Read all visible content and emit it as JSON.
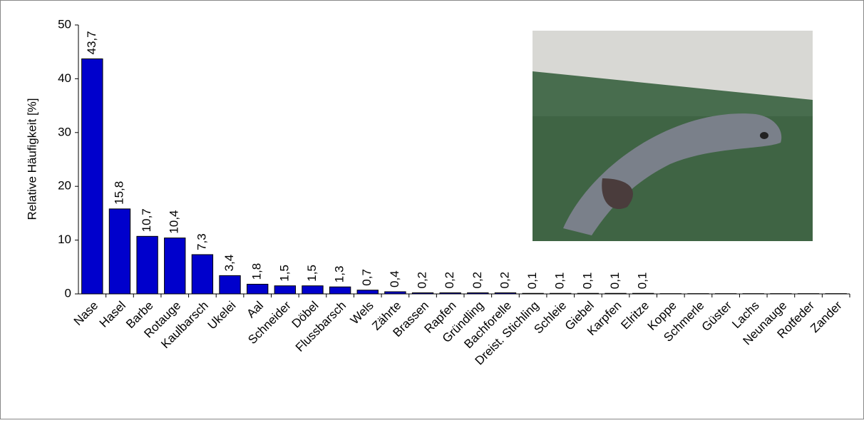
{
  "chart_data": {
    "type": "bar",
    "y_label": "Relative Häufigkeit [%]",
    "categories": [
      "Nase",
      "Hasel",
      "Barbe",
      "Rotauge",
      "Kaulbarsch",
      "Ukelei",
      "Aal",
      "Schneider",
      "Döbel",
      "Flussbarsch",
      "Wels",
      "Zährte",
      "Brassen",
      "Rapfen",
      "Gründling",
      "Bachforelle",
      "Dreist. Stichling",
      "Schleie",
      "Giebel",
      "Karpfen",
      "Elritze",
      "Koppe",
      "Schmerle",
      "Güster",
      "Lachs",
      "Neunauge",
      "Rotfeder",
      "Zander"
    ],
    "values": [
      43.7,
      15.8,
      10.7,
      10.4,
      7.3,
      3.4,
      1.8,
      1.5,
      1.5,
      1.3,
      0.7,
      0.4,
      0.2,
      0.2,
      0.2,
      0.2,
      0.1,
      0.1,
      0.1,
      0.1,
      0.1,
      0.05,
      0.05,
      0.05,
      0.05,
      0.05,
      0.05,
      0.05
    ],
    "value_labels": [
      "43,7",
      "15,8",
      "10,7",
      "10,4",
      "7,3",
      "3,4",
      "1,8",
      "1,5",
      "1,5",
      "1,3",
      "0,7",
      "0,4",
      "0,2",
      "0,2",
      "0,2",
      "0,2",
      "0,1",
      "0,1",
      "0,1",
      "0,1",
      "0,1",
      null,
      null,
      null,
      null,
      null,
      null,
      null
    ],
    "color": "#0000cc",
    "ylim": [
      0,
      50
    ],
    "yticks": [
      0,
      10,
      20,
      30,
      40,
      50
    ],
    "grid": false
  }
}
